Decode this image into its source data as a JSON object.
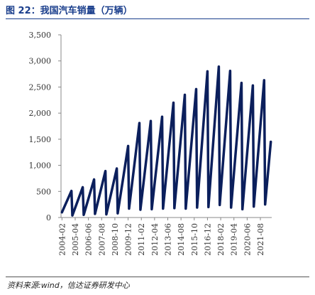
{
  "figure": {
    "title": "图 22：我国汽车销量（万辆）",
    "source": "资料来源:wind，信达证券研发中心"
  },
  "colors": {
    "line": "#0b1f5c",
    "title": "#1a3e8c",
    "axis": "#888888"
  },
  "chart_data": {
    "type": "line",
    "title": "我国汽车销量（万辆）",
    "xlabel": "",
    "ylabel": "",
    "ylim": [
      0,
      3500
    ],
    "yticks": [
      0,
      500,
      1000,
      1500,
      2000,
      2500,
      3000,
      3500
    ],
    "ytick_labels": [
      "0",
      "500",
      "1,000",
      "1,500",
      "2,000",
      "2,500",
      "3,000",
      "3,500"
    ],
    "xticks": [
      "2004-02",
      "2005-04",
      "2006-06",
      "2007-08",
      "2008-10",
      "2009-12",
      "2011-02",
      "2012-04",
      "2013-06",
      "2014-08",
      "2015-10",
      "2016-12",
      "2018-02",
      "2019-04",
      "2020-06",
      "2021-08"
    ],
    "grid": false,
    "legend": "none",
    "series": [
      {
        "name": "",
        "x": [
          "2004-02",
          "2004-12",
          "2005-01",
          "2005-12",
          "2006-01",
          "2006-12",
          "2007-01",
          "2007-12",
          "2008-01",
          "2008-12",
          "2009-01",
          "2009-12",
          "2010-01",
          "2010-12",
          "2011-01",
          "2011-12",
          "2012-01",
          "2012-12",
          "2013-01",
          "2013-12",
          "2014-01",
          "2014-12",
          "2015-01",
          "2015-12",
          "2016-01",
          "2016-12",
          "2017-01",
          "2017-12",
          "2018-01",
          "2018-12",
          "2019-01",
          "2019-12",
          "2020-01",
          "2020-12",
          "2021-01",
          "2021-12",
          "2022-01",
          "2022-07"
        ],
        "values": [
          100,
          510,
          40,
          580,
          50,
          730,
          70,
          890,
          60,
          940,
          80,
          1370,
          170,
          1810,
          150,
          1850,
          160,
          1930,
          170,
          2200,
          180,
          2350,
          170,
          2460,
          190,
          2800,
          200,
          2890,
          240,
          2810,
          190,
          2580,
          160,
          2530,
          210,
          2630,
          250,
          1450
        ]
      }
    ]
  }
}
